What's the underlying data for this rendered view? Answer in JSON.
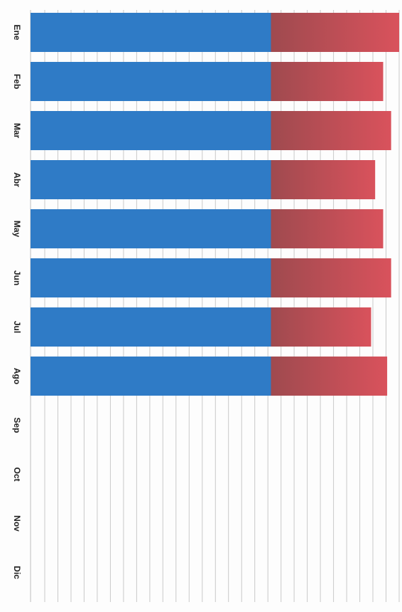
{
  "chart_data": {
    "type": "bar",
    "orientation": "horizontal-stacked",
    "categories": [
      "Ene",
      "Feb",
      "Mar",
      "Abr",
      "May",
      "Jun",
      "Jul",
      "Ago",
      "Sep",
      "Oct",
      "Nov",
      "Dic"
    ],
    "series": [
      {
        "values": [
          60,
          60,
          60,
          60,
          60,
          60,
          60,
          60,
          null,
          null,
          null,
          null
        ]
      },
      {
        "values": [
          32,
          28,
          30,
          26,
          28,
          30,
          25,
          29,
          null,
          null,
          null,
          null
        ]
      }
    ],
    "xlim": [
      0,
      92
    ],
    "grid": true,
    "legend": "none",
    "colors": {
      "series_1": "#2f7bc6",
      "series_2": "#c84f57",
      "grid": "#c9c9c9"
    }
  }
}
